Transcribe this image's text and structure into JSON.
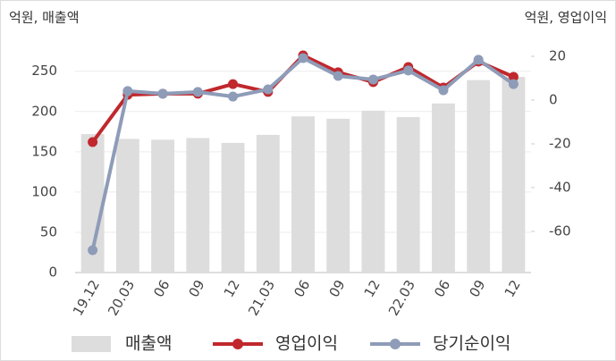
{
  "chart_data": {
    "type": "bar_line_combo",
    "left_axis_label": "억원, 매출액",
    "right_axis_label": "억원, 영업이익",
    "categories": [
      "19.12",
      "20.03",
      "06",
      "09",
      "12",
      "21.03",
      "06",
      "09",
      "12",
      "22.03",
      "06",
      "09",
      "12"
    ],
    "series": [
      {
        "name": "매출액",
        "type": "bar",
        "color": "#dddddd",
        "values": [
          172,
          166,
          165,
          167,
          161,
          171,
          194,
          191,
          201,
          193,
          210,
          239,
          243
        ]
      },
      {
        "name": "영업이익",
        "type": "line",
        "axis": "y2",
        "color": "#c0282d",
        "values": [
          -19.2,
          2.4,
          2.9,
          2.9,
          7.3,
          3.7,
          20.4,
          12.7,
          8.2,
          15.1,
          5.7,
          17.6,
          10.6
        ]
      },
      {
        "name": "당기순이익",
        "type": "line",
        "axis": "y2",
        "color": "#8e9cb8",
        "values": [
          -68.6,
          4.1,
          2.9,
          3.7,
          1.6,
          4.9,
          19.2,
          11,
          9.4,
          13.5,
          4.5,
          18.4,
          7.3
        ]
      }
    ],
    "ylim": [
      0,
      283
    ],
    "yticks": [
      0,
      50,
      100,
      150,
      200,
      250
    ],
    "y2lim": [
      -78.8,
      25.3
    ],
    "y2ticks": [
      -60,
      -40,
      -20,
      0,
      20
    ],
    "grid": true
  }
}
